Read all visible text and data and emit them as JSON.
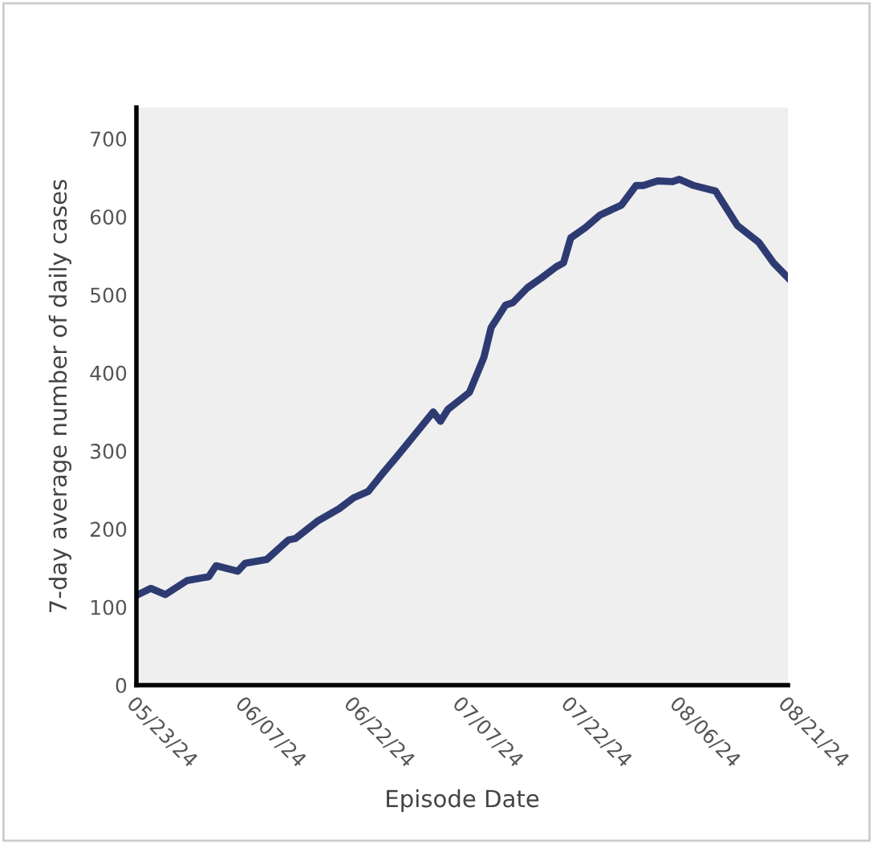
{
  "chart_data": {
    "type": "line",
    "xlabel": "Episode Date",
    "ylabel": "7-day average number of daily cases",
    "x": [
      "2024-05-23",
      "2024-05-25",
      "2024-05-27",
      "2024-05-30",
      "2024-06-02",
      "2024-06-03",
      "2024-06-06",
      "2024-06-07",
      "2024-06-10",
      "2024-06-13",
      "2024-06-14",
      "2024-06-17",
      "2024-06-20",
      "2024-06-22",
      "2024-06-24",
      "2024-06-26",
      "2024-06-28",
      "2024-07-03",
      "2024-07-04",
      "2024-07-05",
      "2024-07-08",
      "2024-07-10",
      "2024-07-11",
      "2024-07-13",
      "2024-07-14",
      "2024-07-16",
      "2024-07-18",
      "2024-07-20",
      "2024-07-21",
      "2024-07-22",
      "2024-07-24",
      "2024-07-26",
      "2024-07-29",
      "2024-07-31",
      "2024-08-01",
      "2024-08-03",
      "2024-08-05",
      "2024-08-06",
      "2024-08-08",
      "2024-08-11",
      "2024-08-14",
      "2024-08-17",
      "2024-08-19",
      "2024-08-21"
    ],
    "series": [
      {
        "color": "#2e3b73",
        "values": [
          115,
          124,
          116,
          134,
          139,
          153,
          146,
          156,
          161,
          186,
          188,
          210,
          226,
          240,
          248,
          271,
          293,
          350,
          338,
          353,
          375,
          420,
          458,
          487,
          490,
          509,
          522,
          536,
          541,
          573,
          586,
          602,
          615,
          640,
          640,
          646,
          645,
          648,
          640,
          633,
          589,
          567,
          541,
          522
        ]
      }
    ],
    "xlim": [
      "2024-05-23",
      "2024-08-21"
    ],
    "xticks": [
      {
        "value": "2024-05-23",
        "label": "05/23/24"
      },
      {
        "value": "2024-06-07",
        "label": "06/07/24"
      },
      {
        "value": "2024-06-22",
        "label": "06/22/24"
      },
      {
        "value": "2024-07-07",
        "label": "07/07/24"
      },
      {
        "value": "2024-07-22",
        "label": "07/22/24"
      },
      {
        "value": "2024-08-06",
        "label": "08/06/24"
      },
      {
        "value": "2024-08-21",
        "label": "08/21/24"
      }
    ],
    "ylim": [
      0,
      740
    ],
    "yticks": [
      0,
      100,
      200,
      300,
      400,
      500,
      600,
      700
    ],
    "grid": false,
    "legend": false,
    "marker": "none",
    "line_style": "solid"
  }
}
